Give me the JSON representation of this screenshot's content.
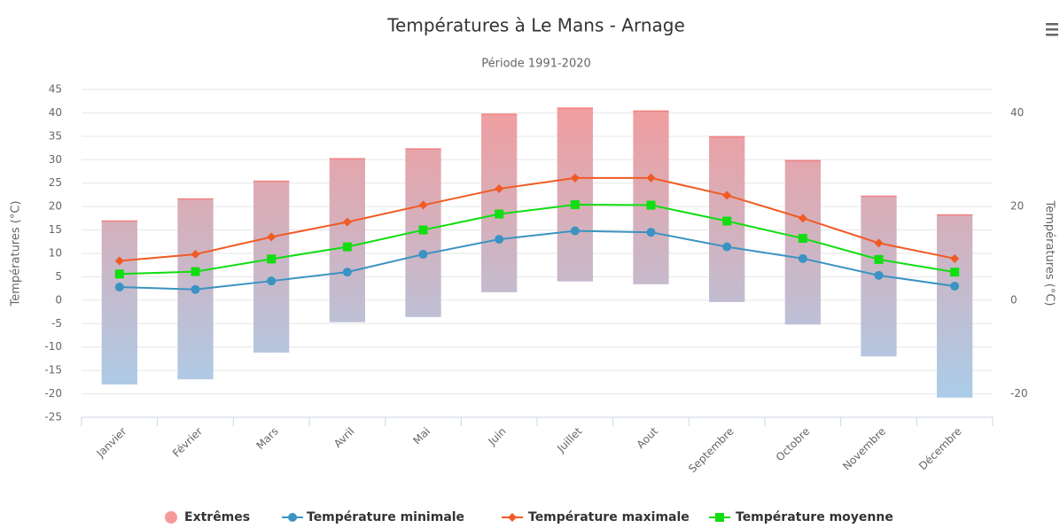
{
  "chart_data": {
    "type": "combo",
    "title": "Températures à Le Mans - Arnage",
    "subtitle": "Période 1991-2020",
    "ylabel": "Températures (°C)",
    "y2label": "Températures (°C)",
    "categories": [
      "Janvier",
      "Février",
      "Mars",
      "Avril",
      "Mai",
      "Juin",
      "Juillet",
      "Aout",
      "Septembre",
      "Octobre",
      "Novembre",
      "Décembre"
    ],
    "ylim": [
      -25,
      45
    ],
    "yticks": [
      -25,
      -20,
      -15,
      -10,
      -5,
      0,
      5,
      10,
      15,
      20,
      25,
      30,
      35,
      40,
      45
    ],
    "y2lim": [
      -25,
      45
    ],
    "y2ticks": [
      -20,
      0,
      20,
      40
    ],
    "grid": true,
    "legend": "bottom",
    "series": [
      {
        "name": "Extrêmes",
        "type": "columnrange",
        "colors": [
          "#f59a9a",
          "#a6d0ee"
        ],
        "low": [
          -18,
          -16.9,
          -11.2,
          -4.7,
          -3.6,
          1.7,
          4,
          3.4,
          -0.4,
          -5.2,
          -12,
          -20.8
        ],
        "high": [
          16.9,
          21.6,
          25.4,
          30.2,
          32.3,
          39.7,
          41,
          40.4,
          34.9,
          29.8,
          22.2,
          18.2
        ]
      },
      {
        "name": "Température minimale",
        "type": "line",
        "color": "#3a93c2",
        "marker": "circle",
        "values": [
          2.8,
          2.3,
          4.1,
          6,
          9.8,
          13,
          14.8,
          14.5,
          11.4,
          8.9,
          5.3,
          3
        ]
      },
      {
        "name": "Température maximale",
        "type": "line",
        "color": "#f15a24",
        "marker": "diamond",
        "values": [
          8.4,
          9.8,
          13.5,
          16.7,
          20.3,
          23.8,
          26.1,
          26.1,
          22.4,
          17.5,
          12.2,
          8.9
        ]
      },
      {
        "name": "Température moyenne",
        "type": "line",
        "color": "#11dd11",
        "marker": "square",
        "values": [
          5.6,
          6.1,
          8.8,
          11.4,
          15.0,
          18.4,
          20.4,
          20.3,
          16.9,
          13.2,
          8.7,
          6.0
        ]
      }
    ]
  }
}
